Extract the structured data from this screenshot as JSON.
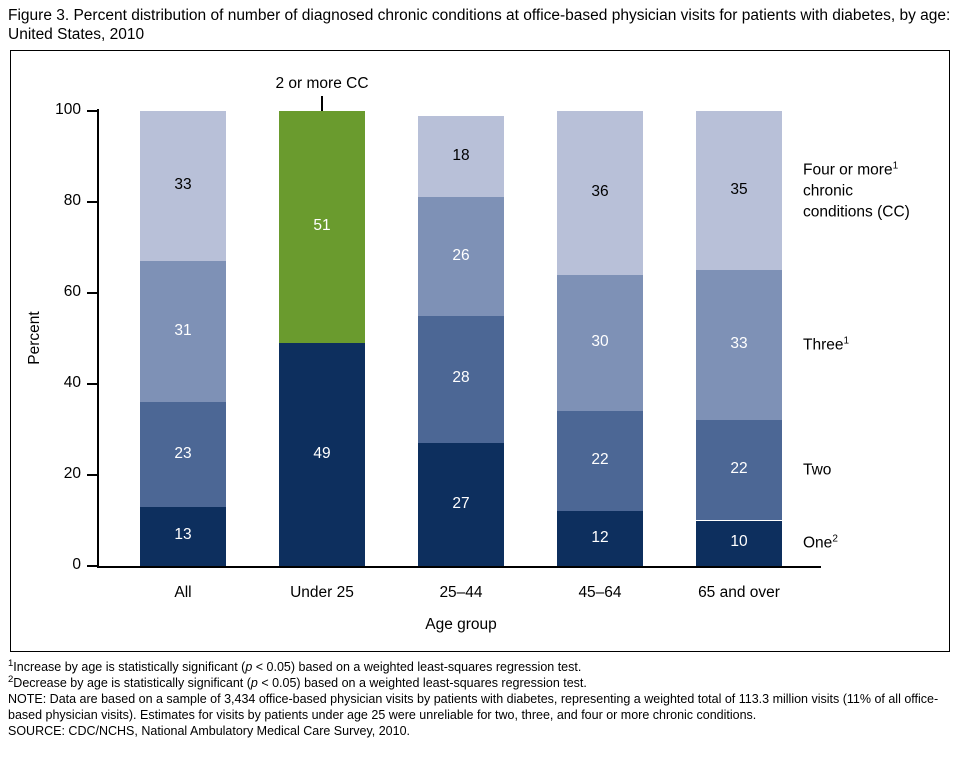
{
  "chart_data": {
    "type": "bar",
    "stacked": true,
    "title": "Figure 3. Percent distribution of number of diagnosed chronic conditions at office-based physician visits for patients with diabetes, by age: United States, 2010",
    "xlabel": "Age group",
    "ylabel": "Percent",
    "ylim": [
      0,
      100
    ],
    "yticks": [
      0,
      20,
      40,
      60,
      80,
      100
    ],
    "grid": false,
    "categories": [
      "All",
      "Under 25",
      "25–44",
      "45–64",
      "65 and over"
    ],
    "series": [
      {
        "name": "One",
        "values": [
          13,
          49,
          27,
          12,
          10
        ],
        "color": "#0d2f5e",
        "label_color": "#ffffff"
      },
      {
        "name": "Two",
        "values": [
          23,
          null,
          28,
          22,
          22
        ],
        "color": "#4c6795",
        "label_color": "#ffffff"
      },
      {
        "name": "Three",
        "values": [
          31,
          null,
          26,
          30,
          33
        ],
        "color": "#7e91b6",
        "label_color": "#ffffff"
      },
      {
        "name": "Four or more chronic conditions (CC)",
        "values": [
          33,
          null,
          18,
          36,
          35
        ],
        "color": "#b8c0d8",
        "label_color": "#000000"
      }
    ],
    "extra_segment": {
      "category_index": 1,
      "label": "2 or more CC",
      "value": 51,
      "color": "#6a9b2e",
      "label_color": "#ffffff"
    },
    "legend": {
      "position": "right",
      "entries": [
        {
          "text": "Four or more",
          "sup": "1",
          "extra_lines": [
            "chronic",
            "conditions (CC)"
          ],
          "series_index": 3
        },
        {
          "text": "Three",
          "sup": "1",
          "extra_lines": [],
          "series_index": 2
        },
        {
          "text": "Two",
          "sup": "",
          "extra_lines": [],
          "series_index": 1
        },
        {
          "text": "One",
          "sup": "2",
          "extra_lines": [],
          "series_index": 0
        }
      ]
    }
  },
  "footnotes": {
    "fn1": {
      "sup": "1",
      "pre": "Increase by age is statistically significant (",
      "italic": "p",
      "post": " < 0.05) based on a weighted least-squares regression test."
    },
    "fn2": {
      "sup": "2",
      "pre": "Decrease by age is statistically significant (",
      "italic": "p",
      "post": " < 0.05) based on a weighted least-squares regression test."
    },
    "note": "NOTE: Data are based on a sample of 3,434 office-based physician visits by patients with diabetes, representing a weighted total of 113.3 million visits (11% of all office-based physician visits). Estimates for visits by patients under age 25 were unreliable for two, three, and four or more chronic conditions.",
    "source": "SOURCE: CDC/NCHS, National Ambulatory Medical Care Survey, 2010."
  }
}
